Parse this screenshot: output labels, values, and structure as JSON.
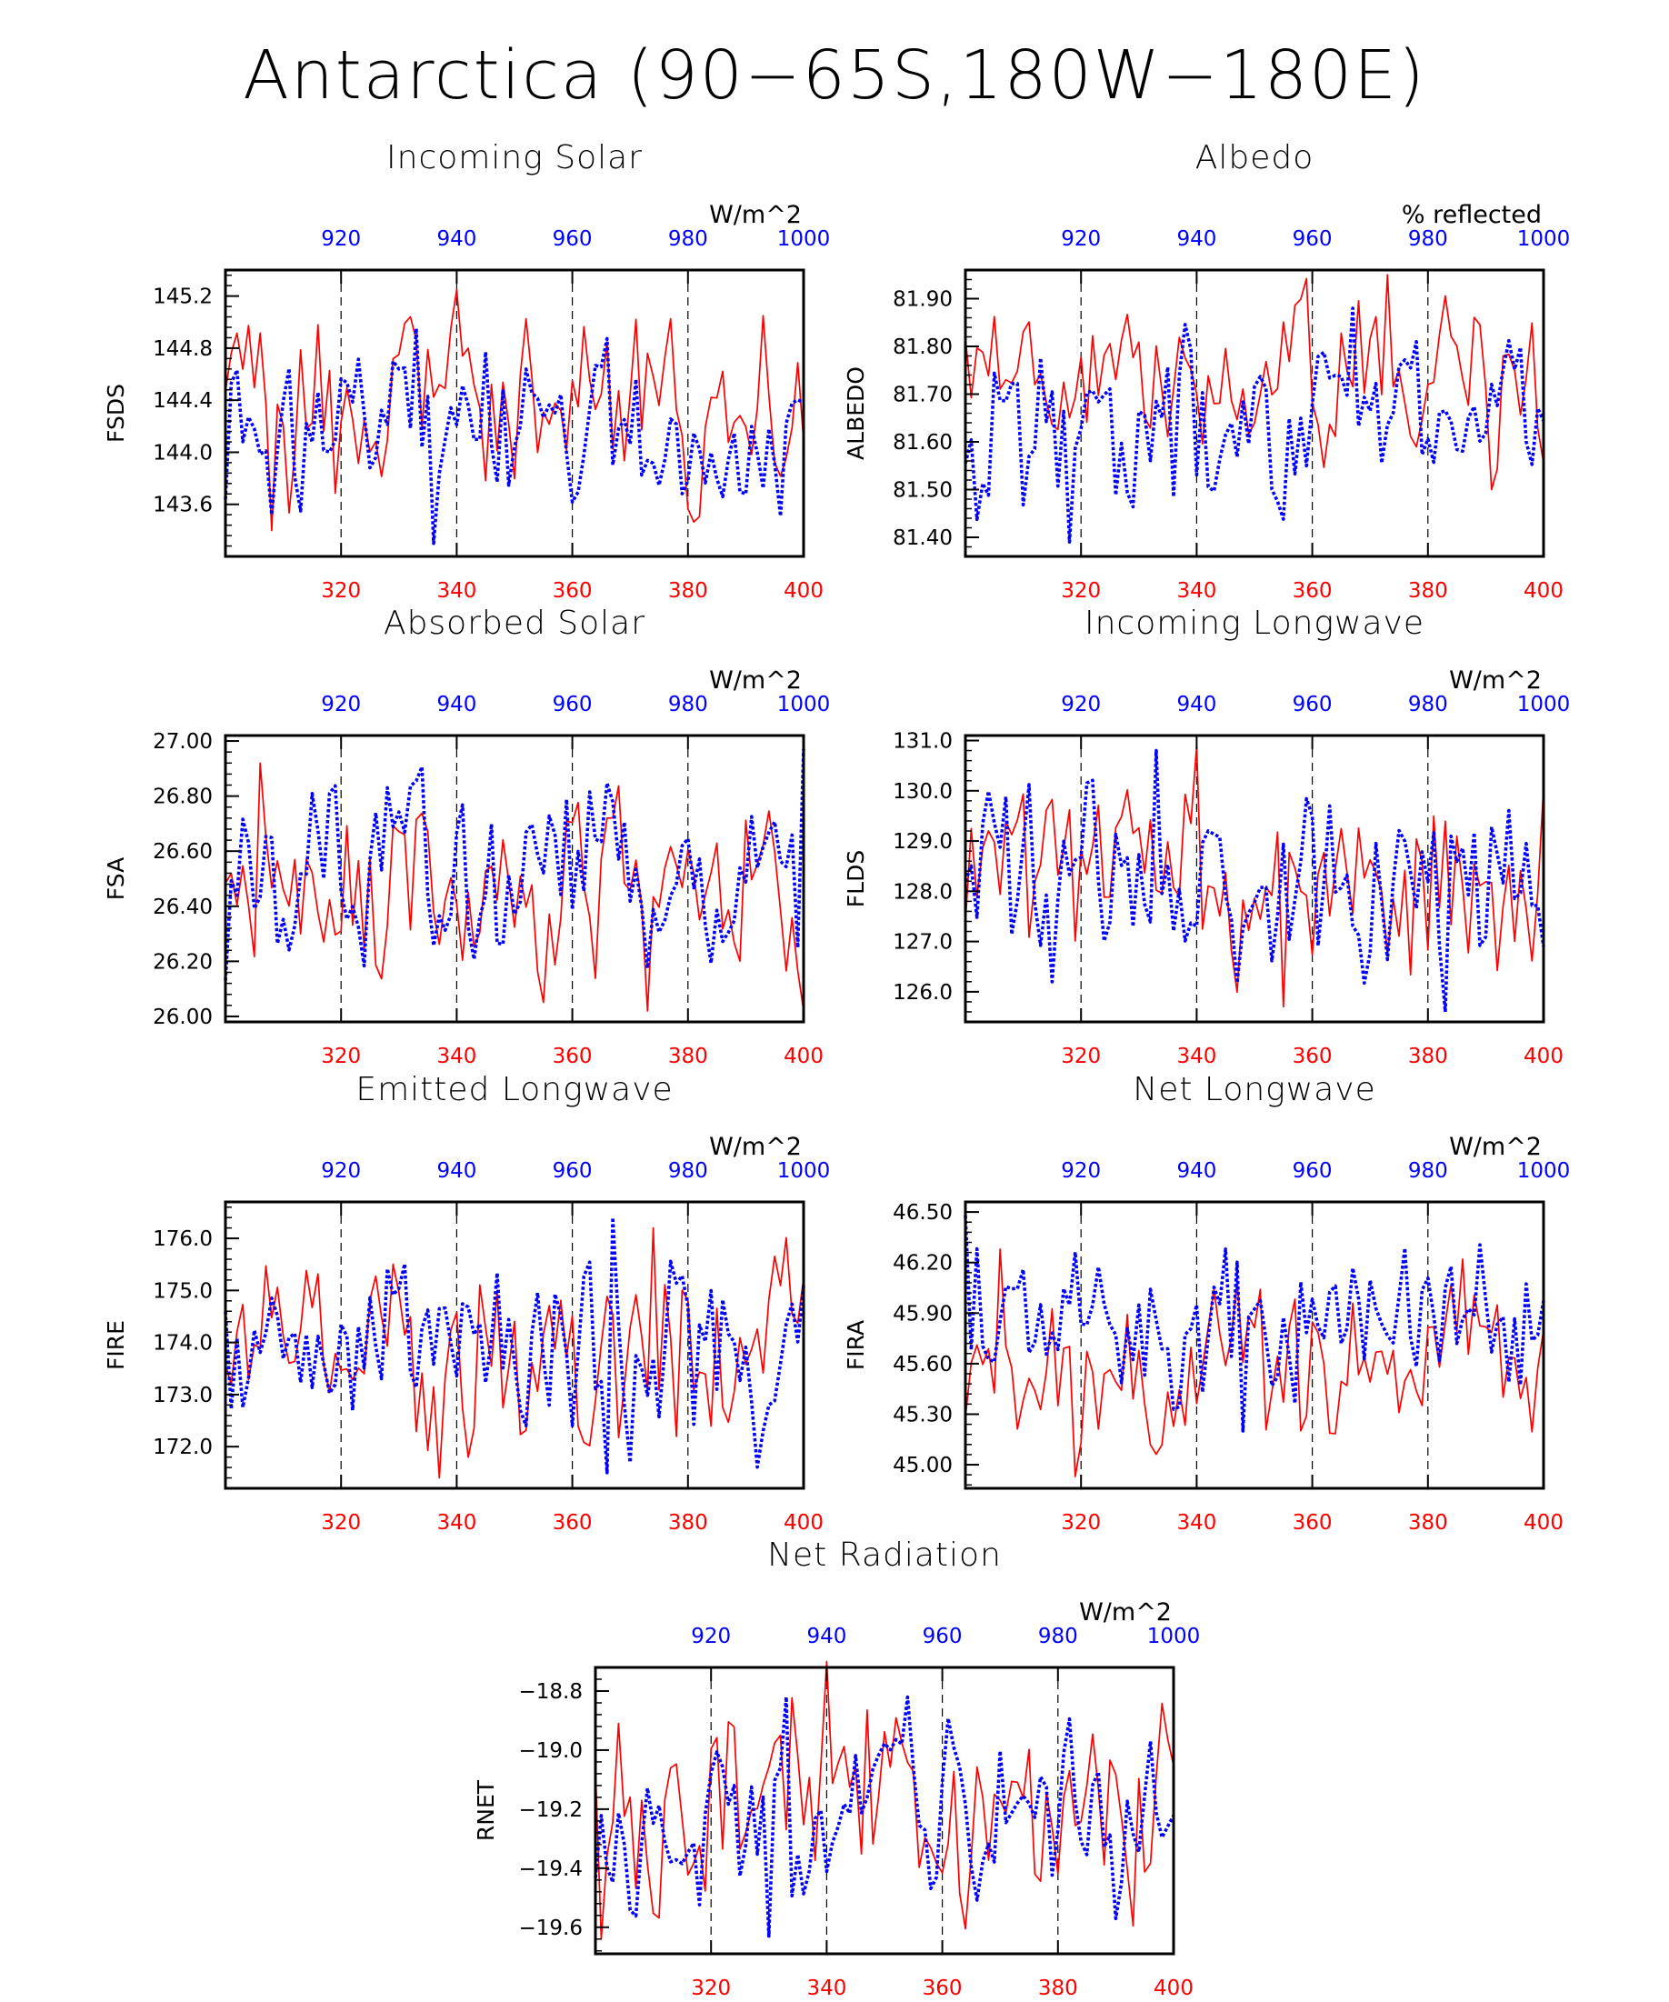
{
  "figure": {
    "title": "Antarctica (90−65S,180W−180E)"
  },
  "colors": {
    "bottom_series": "#ff0000",
    "top_series": "#0000ff",
    "axes": "#000000"
  },
  "chart_data": [
    {
      "type": "line",
      "title": "Incoming Solar",
      "ylabel": "FSDS",
      "units": "W/m^2",
      "ylim": [
        143.2,
        145.4
      ],
      "yticks": [
        143.6,
        144.0,
        144.4,
        144.8,
        145.2
      ],
      "ytick_labels": [
        "143.6",
        "144.0",
        "144.4",
        "144.8",
        "145.2"
      ],
      "x_bottom": {
        "range": [
          300,
          400
        ],
        "ticks": [
          320,
          340,
          360,
          380,
          400
        ],
        "color": "#ff0000"
      },
      "x_top": {
        "range": [
          900,
          1000
        ],
        "ticks": [
          920,
          940,
          960,
          980,
          1000
        ],
        "color": "#0000ff"
      },
      "grid": "dashed vertical at top/bottom ticks",
      "series": [
        {
          "axis": "bottom",
          "color": "#ff0000",
          "style": "solid",
          "x_start": 300,
          "y_range": [
            143.4,
            145.25
          ],
          "seed": 11
        },
        {
          "axis": "top",
          "color": "#0000ff",
          "style": "dotted",
          "x_start": 900,
          "y_range": [
            143.3,
            144.95
          ],
          "seed": 12
        }
      ]
    },
    {
      "type": "line",
      "title": "Albedo",
      "ylabel": "ALBEDO",
      "units": "% reflected",
      "ylim": [
        81.36,
        81.96
      ],
      "yticks": [
        81.4,
        81.5,
        81.6,
        81.7,
        81.8,
        81.9
      ],
      "ytick_labels": [
        "81.40",
        "81.50",
        "81.60",
        "81.70",
        "81.80",
        "81.90"
      ],
      "x_bottom": {
        "range": [
          300,
          400
        ],
        "ticks": [
          320,
          340,
          360,
          380,
          400
        ],
        "color": "#ff0000"
      },
      "x_top": {
        "range": [
          900,
          1000
        ],
        "ticks": [
          920,
          940,
          960,
          980,
          1000
        ],
        "color": "#0000ff"
      },
      "grid": "dashed vertical at top/bottom ticks",
      "series": [
        {
          "axis": "bottom",
          "color": "#ff0000",
          "style": "solid",
          "x_start": 300,
          "y_range": [
            81.5,
            81.95
          ],
          "seed": 21
        },
        {
          "axis": "top",
          "color": "#0000ff",
          "style": "dotted",
          "x_start": 900,
          "y_range": [
            81.39,
            81.88
          ],
          "seed": 22
        }
      ]
    },
    {
      "type": "line",
      "title": "Absorbed Solar",
      "ylabel": "FSA",
      "units": "W/m^2",
      "ylim": [
        25.98,
        27.02
      ],
      "yticks": [
        26.0,
        26.2,
        26.4,
        26.6,
        26.8,
        27.0
      ],
      "ytick_labels": [
        "26.00",
        "26.20",
        "26.40",
        "26.60",
        "26.80",
        "27.00"
      ],
      "x_bottom": {
        "range": [
          300,
          400
        ],
        "ticks": [
          320,
          340,
          360,
          380,
          400
        ],
        "color": "#ff0000"
      },
      "x_top": {
        "range": [
          900,
          1000
        ],
        "ticks": [
          920,
          940,
          960,
          980,
          1000
        ],
        "color": "#0000ff"
      },
      "grid": "dashed vertical at top/bottom ticks",
      "series": [
        {
          "axis": "bottom",
          "color": "#ff0000",
          "style": "solid",
          "x_start": 300,
          "y_range": [
            26.02,
            26.92
          ],
          "seed": 31
        },
        {
          "axis": "top",
          "color": "#0000ff",
          "style": "dotted",
          "x_start": 900,
          "y_range": [
            26.13,
            26.97
          ],
          "seed": 32
        }
      ]
    },
    {
      "type": "line",
      "title": "Incoming Longwave",
      "ylabel": "FLDS",
      "units": "W/m^2",
      "ylim": [
        125.4,
        131.1
      ],
      "yticks": [
        126.0,
        127.0,
        128.0,
        129.0,
        130.0,
        131.0
      ],
      "ytick_labels": [
        "126.0",
        "127.0",
        "128.0",
        "129.0",
        "130.0",
        "131.0"
      ],
      "x_bottom": {
        "range": [
          300,
          400
        ],
        "ticks": [
          320,
          340,
          360,
          380,
          400
        ],
        "color": "#ff0000"
      },
      "x_top": {
        "range": [
          900,
          1000
        ],
        "ticks": [
          920,
          940,
          960,
          980,
          1000
        ],
        "color": "#0000ff"
      },
      "grid": "dashed vertical at top/bottom ticks",
      "series": [
        {
          "axis": "bottom",
          "color": "#ff0000",
          "style": "solid",
          "x_start": 300,
          "y_range": [
            125.7,
            130.9
          ],
          "seed": 41
        },
        {
          "axis": "top",
          "color": "#0000ff",
          "style": "dotted",
          "x_start": 900,
          "y_range": [
            125.6,
            130.8
          ],
          "seed": 42
        }
      ]
    },
    {
      "type": "line",
      "title": "Emitted Longwave",
      "ylabel": "FIRE",
      "units": "W/m^2",
      "ylim": [
        171.2,
        176.7
      ],
      "yticks": [
        172.0,
        173.0,
        174.0,
        175.0,
        176.0
      ],
      "ytick_labels": [
        "172.0",
        "173.0",
        "174.0",
        "175.0",
        "176.0"
      ],
      "x_bottom": {
        "range": [
          300,
          400
        ],
        "ticks": [
          320,
          340,
          360,
          380,
          400
        ],
        "color": "#ff0000"
      },
      "x_top": {
        "range": [
          900,
          1000
        ],
        "ticks": [
          920,
          940,
          960,
          980,
          1000
        ],
        "color": "#0000ff"
      },
      "grid": "dashed vertical at top/bottom ticks",
      "series": [
        {
          "axis": "bottom",
          "color": "#ff0000",
          "style": "solid",
          "x_start": 300,
          "y_range": [
            171.4,
            176.2
          ],
          "seed": 51
        },
        {
          "axis": "top",
          "color": "#0000ff",
          "style": "dotted",
          "x_start": 900,
          "y_range": [
            171.5,
            176.4
          ],
          "seed": 52
        }
      ]
    },
    {
      "type": "line",
      "title": "Net Longwave",
      "ylabel": "FIRA",
      "units": "W/m^2",
      "ylim": [
        44.86,
        46.56
      ],
      "yticks": [
        45.0,
        45.3,
        45.6,
        45.9,
        46.2,
        46.5
      ],
      "ytick_labels": [
        "45.00",
        "45.30",
        "45.60",
        "45.90",
        "46.20",
        "46.50"
      ],
      "x_bottom": {
        "range": [
          300,
          400
        ],
        "ticks": [
          320,
          340,
          360,
          380,
          400
        ],
        "color": "#ff0000"
      },
      "x_top": {
        "range": [
          900,
          1000
        ],
        "ticks": [
          920,
          940,
          960,
          980,
          1000
        ],
        "color": "#0000ff"
      },
      "grid": "dashed vertical at top/bottom ticks",
      "series": [
        {
          "axis": "bottom",
          "color": "#ff0000",
          "style": "solid",
          "x_start": 300,
          "y_range": [
            44.93,
            46.28
          ],
          "seed": 61
        },
        {
          "axis": "top",
          "color": "#0000ff",
          "style": "dotted",
          "x_start": 900,
          "y_range": [
            45.2,
            46.48
          ],
          "seed": 62
        }
      ]
    },
    {
      "type": "line",
      "title": "Net Radiation",
      "ylabel": "RNET",
      "units": "W/m^2",
      "ylim": [
        -19.69,
        -18.72
      ],
      "yticks": [
        -19.6,
        -19.4,
        -19.2,
        -19.0,
        -18.8
      ],
      "ytick_labels": [
        "−19.6",
        "−19.4",
        "−19.2",
        "−19.0",
        "−18.8"
      ],
      "x_bottom": {
        "range": [
          300,
          400
        ],
        "ticks": [
          320,
          340,
          360,
          380,
          400
        ],
        "color": "#ff0000"
      },
      "x_top": {
        "range": [
          900,
          1000
        ],
        "ticks": [
          920,
          940,
          960,
          980,
          1000
        ],
        "color": "#0000ff"
      },
      "grid": "dashed vertical at top/bottom ticks",
      "series": [
        {
          "axis": "bottom",
          "color": "#ff0000",
          "style": "solid",
          "x_start": 300,
          "y_range": [
            -19.64,
            -18.7
          ],
          "seed": 71
        },
        {
          "axis": "top",
          "color": "#0000ff",
          "style": "dotted",
          "x_start": 900,
          "y_range": [
            -19.63,
            -18.82
          ],
          "seed": 72
        }
      ]
    }
  ]
}
